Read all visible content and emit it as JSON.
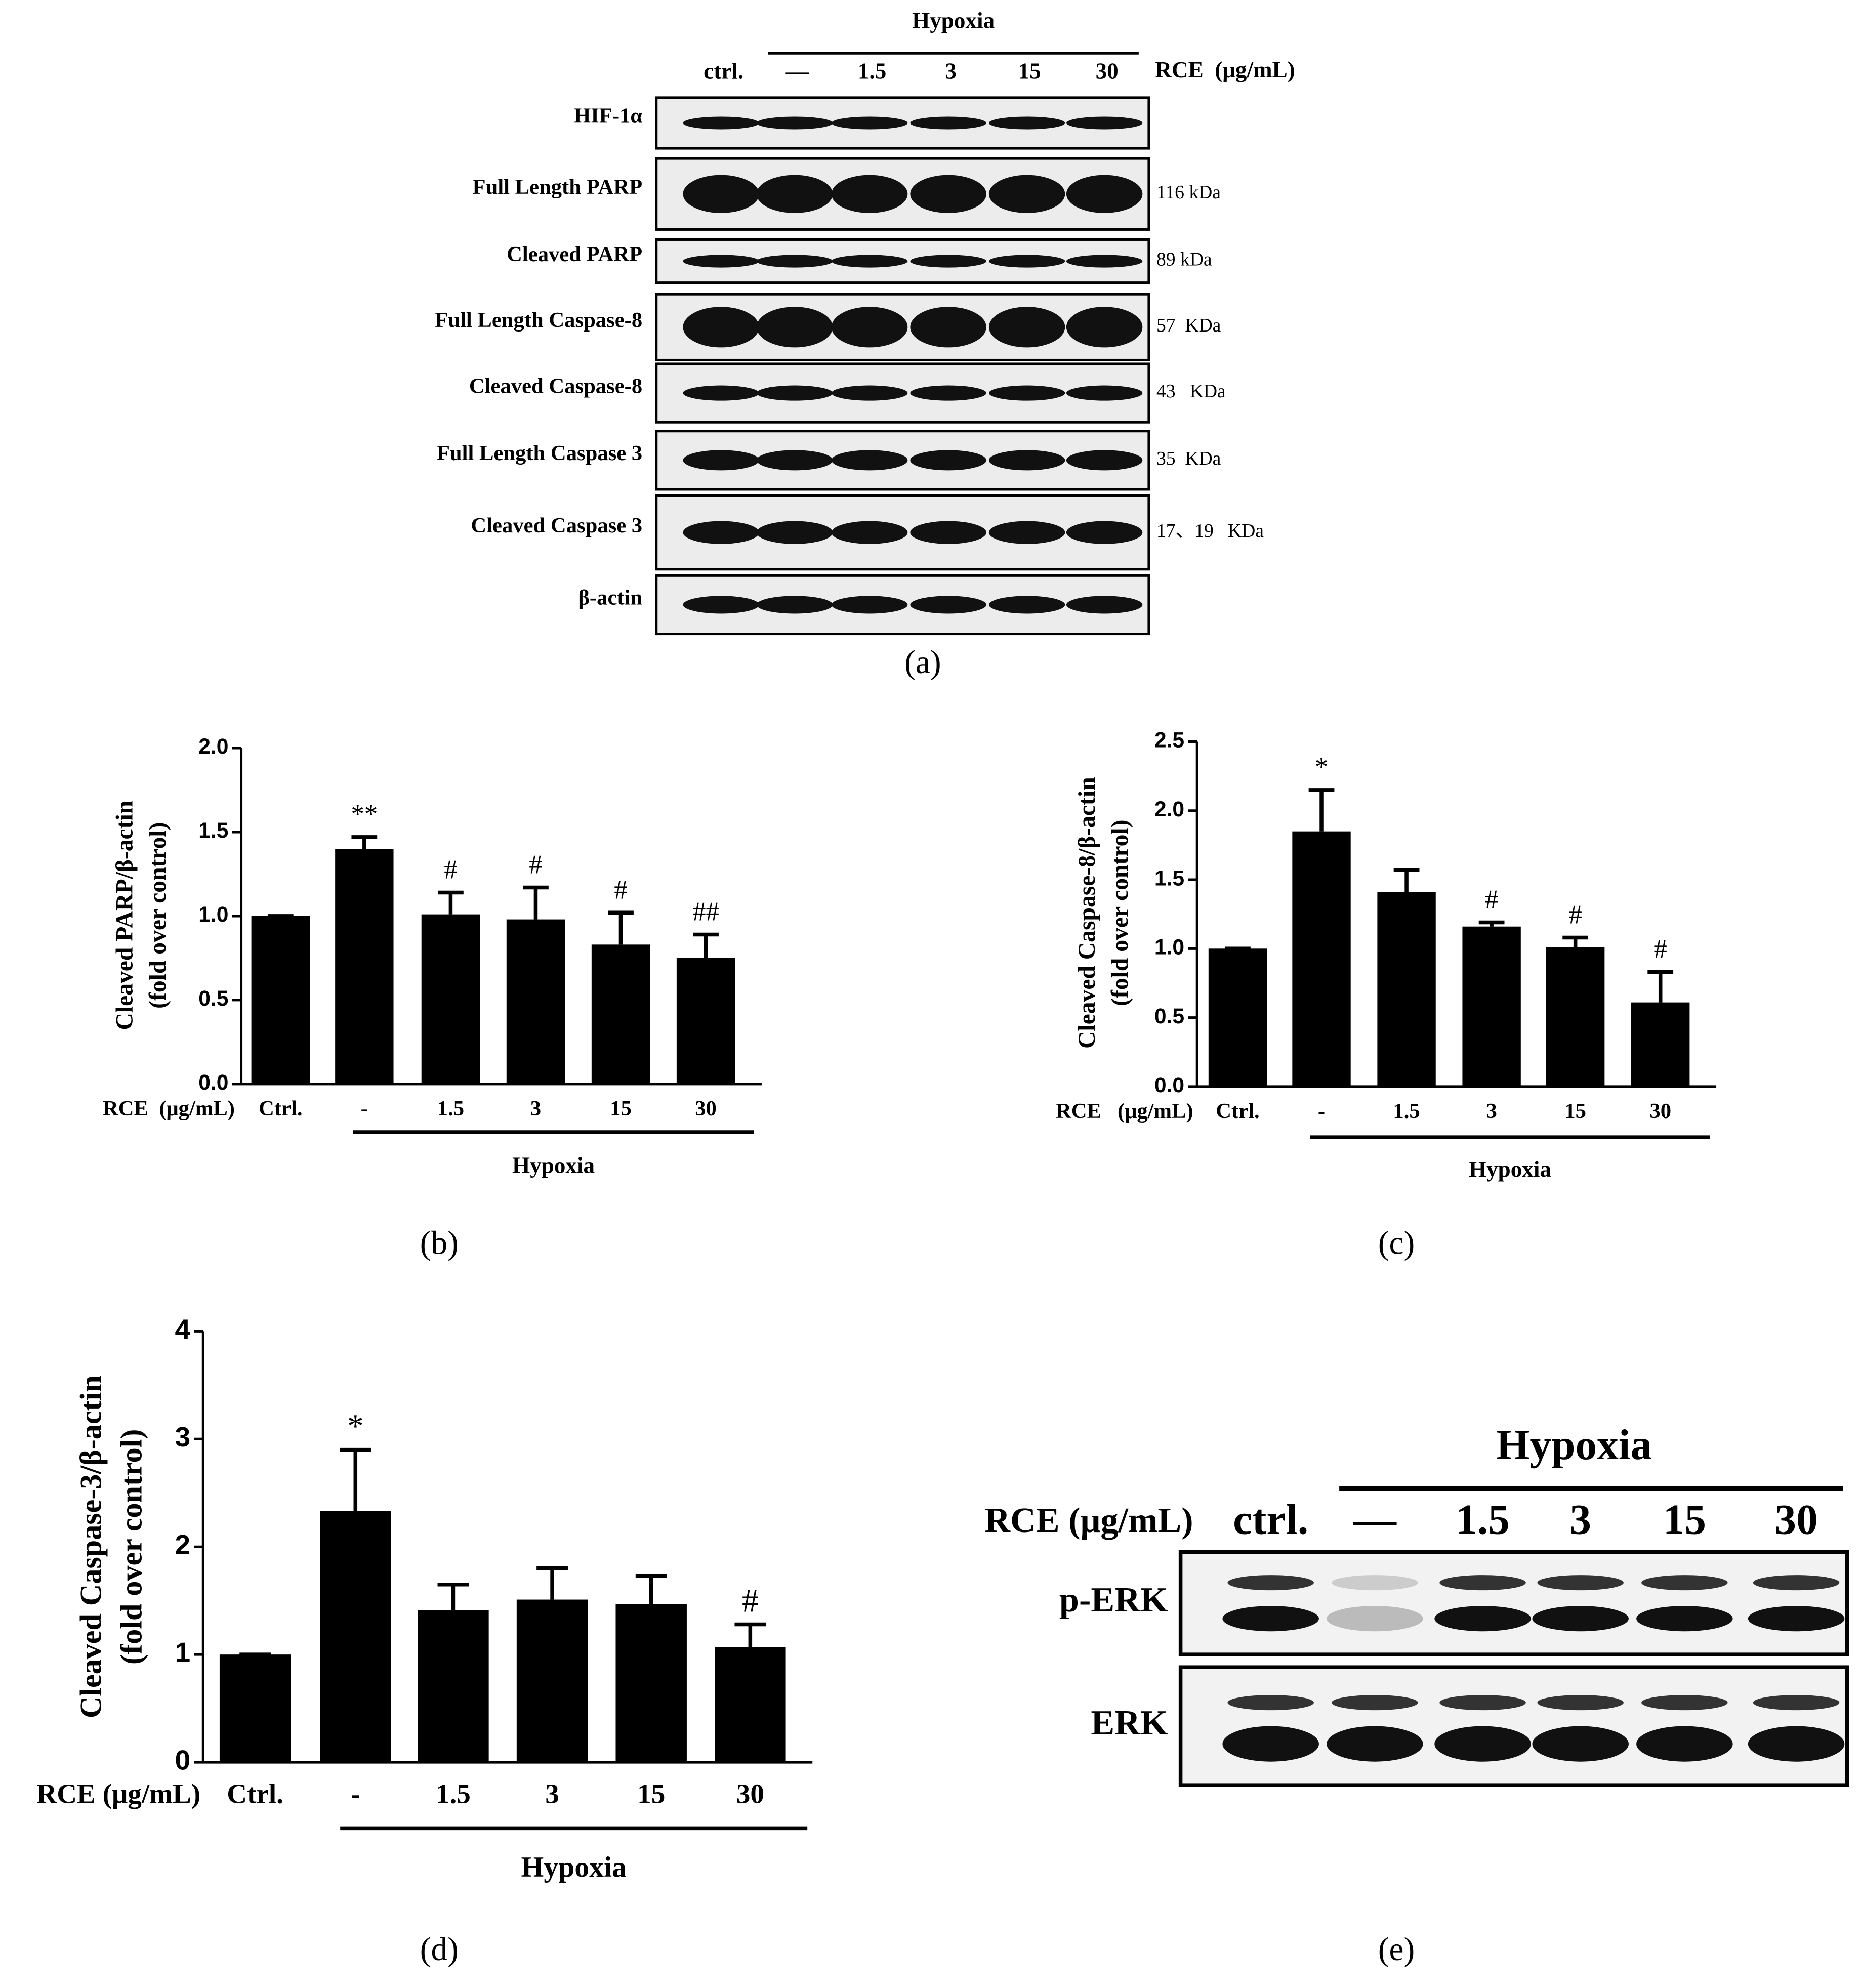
{
  "chart_data": [
    {
      "type": "bar",
      "panel": "(b)",
      "y_label": [
        "Cleaved PARP/β-actin",
        "(fold over control)"
      ],
      "x_label": "RCE  (μg/mL)",
      "group_label": "Hypoxia",
      "categories": [
        "Ctrl.",
        "-",
        "1.5",
        "3",
        "15",
        "30"
      ],
      "values": [
        1.0,
        1.4,
        1.01,
        0.98,
        0.83,
        0.75
      ],
      "errors": [
        0,
        0.07,
        0.13,
        0.19,
        0.19,
        0.14
      ],
      "annotations": [
        null,
        "**",
        "#",
        "#",
        "#",
        "##"
      ],
      "color": "#000000",
      "ylim": [
        0,
        2
      ],
      "yticks": [
        {
          "value": 0,
          "label": "0.0"
        },
        {
          "value": 0.5,
          "label": "0.5"
        },
        {
          "value": 1,
          "label": "1.0"
        },
        {
          "value": 1.5,
          "label": "1.5"
        },
        {
          "value": 2,
          "label": "2.0"
        }
      ]
    },
    {
      "type": "bar",
      "panel": "(c)",
      "y_label": [
        "Cleaved Caspase-8/β-actin",
        "(fold over control)"
      ],
      "x_label": "RCE   (μg/mL)",
      "group_label": "Hypoxia",
      "categories": [
        "Ctrl.",
        "-",
        "1.5",
        "3",
        "15",
        "30"
      ],
      "values": [
        1.0,
        1.85,
        1.41,
        1.16,
        1.01,
        0.61
      ],
      "errors": [
        0,
        0.3,
        0.16,
        0.03,
        0.07,
        0.22
      ],
      "annotations": [
        null,
        "*",
        null,
        "#",
        "#",
        "#"
      ],
      "color": "#000000",
      "ylim": [
        0,
        2.5
      ],
      "yticks": [
        {
          "value": 0,
          "label": "0.0"
        },
        {
          "value": 0.5,
          "label": "0.5"
        },
        {
          "value": 1,
          "label": "1.0"
        },
        {
          "value": 1.5,
          "label": "1.5"
        },
        {
          "value": 2,
          "label": "2.0"
        },
        {
          "value": 2.5,
          "label": "2.5"
        }
      ]
    },
    {
      "type": "bar",
      "panel": "(d)",
      "y_label": [
        "Cleaved Caspase-3/β-actin",
        "(fold over control)"
      ],
      "x_label": "RCE (μg/mL)",
      "group_label": "Hypoxia",
      "categories": [
        "Ctrl.",
        "-",
        "1.5",
        "3",
        "15",
        "30"
      ],
      "values": [
        1.0,
        2.33,
        1.41,
        1.51,
        1.47,
        1.07
      ],
      "errors": [
        0,
        0.57,
        0.24,
        0.29,
        0.26,
        0.21
      ],
      "annotations": [
        null,
        "*",
        null,
        null,
        null,
        "#"
      ],
      "color": "#000000",
      "ylim": [
        0,
        4
      ],
      "yticks": [
        0,
        1,
        2,
        3,
        4
      ]
    }
  ],
  "blot_a": {
    "panel": "(a)",
    "group_label": "Hypoxia",
    "treatment_label": "RCE  (μg/mL)",
    "lanes": [
      "ctrl.",
      "—",
      "1.5",
      "3",
      "15",
      "30"
    ],
    "rows": [
      {
        "label": "HIF-1α"
      },
      {
        "label": "Full Length PARP",
        "size": "116 kDa"
      },
      {
        "label": "Cleaved PARP",
        "size": "89 kDa"
      },
      {
        "label": "Full Length Caspase-8",
        "size": "57  KDa"
      },
      {
        "label": "Cleaved Caspase-8",
        "size": "43   KDa"
      },
      {
        "label": "Full Length Caspase 3",
        "size": "35  KDa"
      },
      {
        "label": "Cleaved Caspase 3",
        "size": "17、19   KDa"
      },
      {
        "label": "β-actin"
      }
    ]
  },
  "blot_e": {
    "panel": "(e)",
    "group_label": "Hypoxia",
    "treatment_label": "RCE (μg/mL)",
    "lanes": [
      "ctrl.",
      "—",
      "1.5",
      "3",
      "15",
      "30"
    ],
    "rows": [
      {
        "label": "p-ERK"
      },
      {
        "label": "ERK"
      }
    ]
  }
}
